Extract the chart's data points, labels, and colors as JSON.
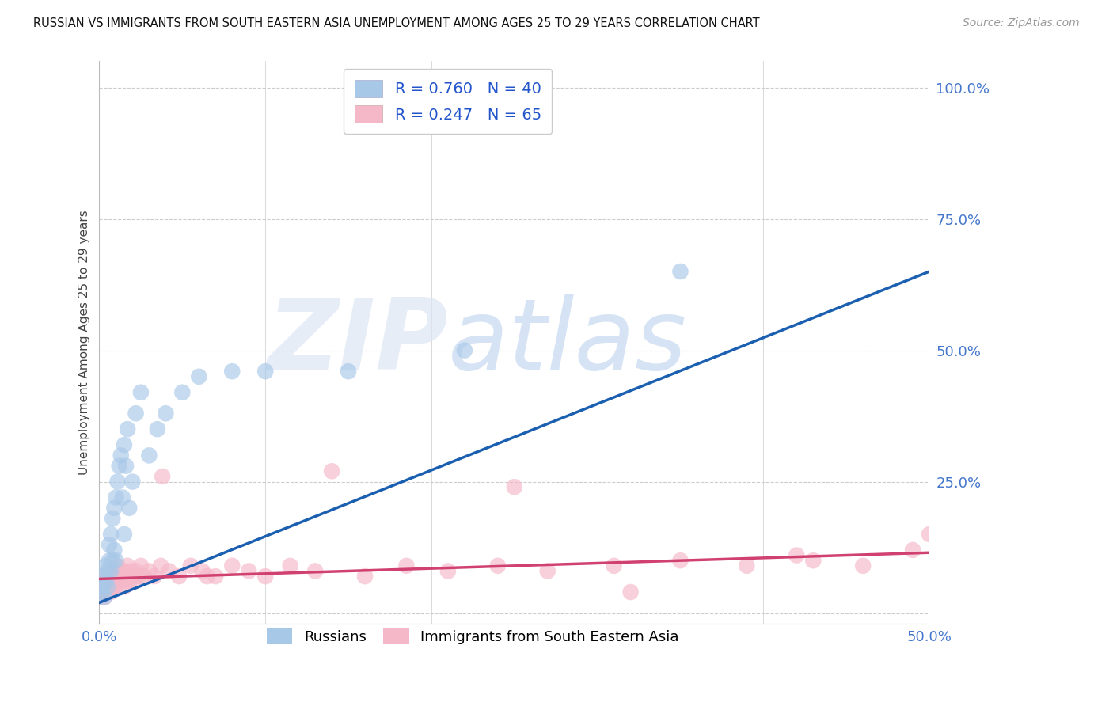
{
  "title": "RUSSIAN VS IMMIGRANTS FROM SOUTH EASTERN ASIA UNEMPLOYMENT AMONG AGES 25 TO 29 YEARS CORRELATION CHART",
  "source": "Source: ZipAtlas.com",
  "ylabel": "Unemployment Among Ages 25 to 29 years",
  "xlim": [
    0.0,
    0.5
  ],
  "ylim": [
    -0.02,
    1.05
  ],
  "xticks": [
    0.0,
    0.1,
    0.2,
    0.3,
    0.4,
    0.5
  ],
  "yticks": [
    0.0,
    0.25,
    0.5,
    0.75,
    1.0
  ],
  "xtick_labels": [
    "0.0%",
    "",
    "",
    "",
    "",
    "50.0%"
  ],
  "ytick_labels": [
    "",
    "25.0%",
    "50.0%",
    "75.0%",
    "100.0%"
  ],
  "russian_R": 0.76,
  "russian_N": 40,
  "sea_R": 0.247,
  "sea_N": 65,
  "russian_color": "#a8c8e8",
  "sea_color": "#f5b8c8",
  "russian_line_color": "#1a5fb0",
  "sea_line_color": "#d04070",
  "background_color": "#ffffff",
  "grid_color": "#cccccc",
  "watermark_zip_color": "#dde4f0",
  "watermark_atlas_color": "#c8d8ec",
  "russian_line_x0": 0.0,
  "russian_line_y0": 0.02,
  "russian_line_x1": 0.5,
  "russian_line_y1": 0.65,
  "sea_line_x0": 0.0,
  "sea_line_y0": 0.065,
  "sea_line_x1": 0.5,
  "sea_line_y1": 0.115,
  "russian_scatter_x": [
    0.001,
    0.002,
    0.003,
    0.003,
    0.004,
    0.004,
    0.005,
    0.005,
    0.006,
    0.006,
    0.007,
    0.007,
    0.008,
    0.008,
    0.009,
    0.009,
    0.01,
    0.01,
    0.011,
    0.012,
    0.013,
    0.014,
    0.015,
    0.015,
    0.016,
    0.017,
    0.018,
    0.02,
    0.022,
    0.025,
    0.03,
    0.035,
    0.04,
    0.05,
    0.06,
    0.08,
    0.1,
    0.15,
    0.22,
    0.35
  ],
  "russian_scatter_y": [
    0.04,
    0.05,
    0.03,
    0.07,
    0.06,
    0.09,
    0.05,
    0.08,
    0.1,
    0.13,
    0.08,
    0.15,
    0.1,
    0.18,
    0.12,
    0.2,
    0.1,
    0.22,
    0.25,
    0.28,
    0.3,
    0.22,
    0.32,
    0.15,
    0.28,
    0.35,
    0.2,
    0.25,
    0.38,
    0.42,
    0.3,
    0.35,
    0.38,
    0.42,
    0.45,
    0.46,
    0.46,
    0.46,
    0.5,
    0.65
  ],
  "sea_scatter_x": [
    0.001,
    0.002,
    0.003,
    0.004,
    0.004,
    0.005,
    0.005,
    0.006,
    0.006,
    0.007,
    0.007,
    0.008,
    0.008,
    0.009,
    0.009,
    0.01,
    0.01,
    0.011,
    0.011,
    0.012,
    0.013,
    0.014,
    0.015,
    0.015,
    0.016,
    0.017,
    0.018,
    0.019,
    0.02,
    0.021,
    0.022,
    0.024,
    0.025,
    0.027,
    0.03,
    0.033,
    0.037,
    0.042,
    0.048,
    0.055,
    0.062,
    0.07,
    0.08,
    0.09,
    0.1,
    0.115,
    0.13,
    0.16,
    0.185,
    0.21,
    0.24,
    0.27,
    0.31,
    0.35,
    0.39,
    0.43,
    0.46,
    0.49,
    0.5,
    0.038,
    0.065,
    0.14,
    0.25,
    0.32,
    0.42
  ],
  "sea_scatter_y": [
    0.03,
    0.04,
    0.03,
    0.04,
    0.06,
    0.05,
    0.07,
    0.05,
    0.08,
    0.06,
    0.04,
    0.07,
    0.05,
    0.08,
    0.06,
    0.07,
    0.05,
    0.09,
    0.06,
    0.08,
    0.07,
    0.06,
    0.08,
    0.05,
    0.07,
    0.09,
    0.06,
    0.08,
    0.07,
    0.06,
    0.08,
    0.07,
    0.09,
    0.07,
    0.08,
    0.07,
    0.09,
    0.08,
    0.07,
    0.09,
    0.08,
    0.07,
    0.09,
    0.08,
    0.07,
    0.09,
    0.08,
    0.07,
    0.09,
    0.08,
    0.09,
    0.08,
    0.09,
    0.1,
    0.09,
    0.1,
    0.09,
    0.12,
    0.15,
    0.26,
    0.07,
    0.27,
    0.24,
    0.04,
    0.11
  ]
}
